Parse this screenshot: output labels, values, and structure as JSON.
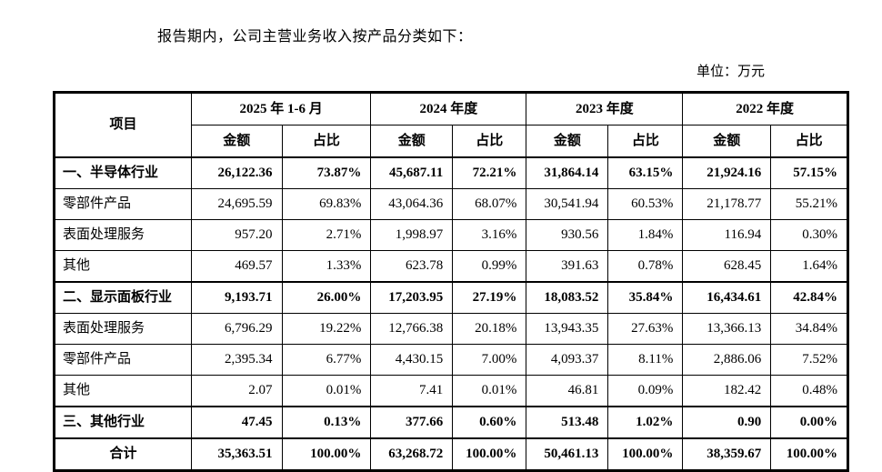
{
  "page": {
    "intro": "报告期内，公司主营业务收入按产品分类如下：",
    "unit_label": "单位：万元"
  },
  "table": {
    "item_header": "项目",
    "subheaders": {
      "amount": "金额",
      "ratio": "占比"
    },
    "periods": [
      "2025 年 1-6 月",
      "2024 年度",
      "2023 年度",
      "2022 年度"
    ],
    "rows": [
      {
        "label": "一、半导体行业",
        "bold": true,
        "total": false,
        "values": [
          "26,122.36",
          "73.87%",
          "45,687.11",
          "72.21%",
          "31,864.14",
          "63.15%",
          "21,924.16",
          "57.15%"
        ]
      },
      {
        "label": "零部件产品",
        "bold": false,
        "total": false,
        "values": [
          "24,695.59",
          "69.83%",
          "43,064.36",
          "68.07%",
          "30,541.94",
          "60.53%",
          "21,178.77",
          "55.21%"
        ]
      },
      {
        "label": "表面处理服务",
        "bold": false,
        "total": false,
        "values": [
          "957.20",
          "2.71%",
          "1,998.97",
          "3.16%",
          "930.56",
          "1.84%",
          "116.94",
          "0.30%"
        ]
      },
      {
        "label": "其他",
        "bold": false,
        "total": false,
        "values": [
          "469.57",
          "1.33%",
          "623.78",
          "0.99%",
          "391.63",
          "0.78%",
          "628.45",
          "1.64%"
        ]
      },
      {
        "label": "二、显示面板行业",
        "bold": true,
        "total": false,
        "values": [
          "9,193.71",
          "26.00%",
          "17,203.95",
          "27.19%",
          "18,083.52",
          "35.84%",
          "16,434.61",
          "42.84%"
        ]
      },
      {
        "label": "表面处理服务",
        "bold": false,
        "total": false,
        "values": [
          "6,796.29",
          "19.22%",
          "12,766.38",
          "20.18%",
          "13,943.35",
          "27.63%",
          "13,366.13",
          "34.84%"
        ]
      },
      {
        "label": "零部件产品",
        "bold": false,
        "total": false,
        "values": [
          "2,395.34",
          "6.77%",
          "4,430.15",
          "7.00%",
          "4,093.37",
          "8.11%",
          "2,886.06",
          "7.52%"
        ]
      },
      {
        "label": "其他",
        "bold": false,
        "total": false,
        "values": [
          "2.07",
          "0.01%",
          "7.41",
          "0.01%",
          "46.81",
          "0.09%",
          "182.42",
          "0.48%"
        ]
      },
      {
        "label": "三、其他行业",
        "bold": true,
        "total": false,
        "values": [
          "47.45",
          "0.13%",
          "377.66",
          "0.60%",
          "513.48",
          "1.02%",
          "0.90",
          "0.00%"
        ]
      },
      {
        "label": "合计",
        "bold": true,
        "total": true,
        "values": [
          "35,363.51",
          "100.00%",
          "63,268.72",
          "100.00%",
          "50,461.13",
          "100.00%",
          "38,359.67",
          "100.00%"
        ]
      }
    ]
  }
}
